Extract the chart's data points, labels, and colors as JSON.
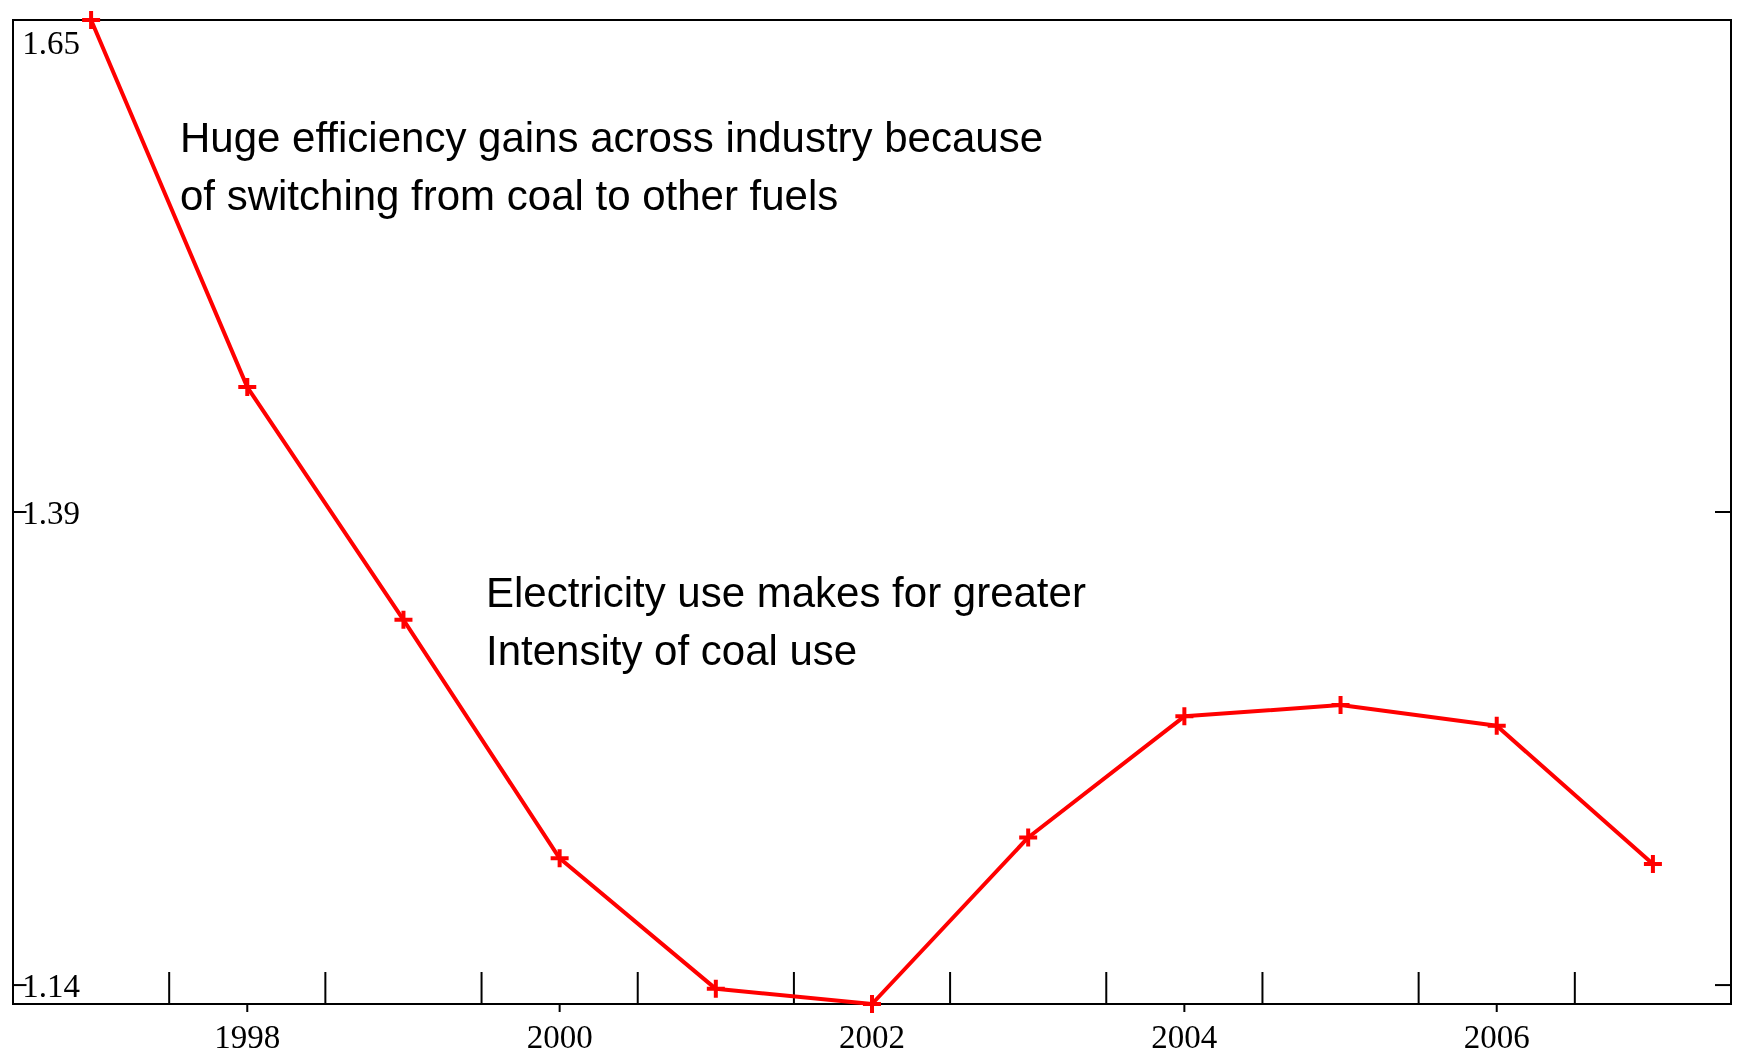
{
  "chart_data": {
    "type": "line",
    "x": [
      1997,
      1998,
      1999,
      2000,
      2001,
      2002,
      2003,
      2004,
      2005,
      2006,
      2007
    ],
    "series": [
      {
        "color": "#ff0000",
        "values": [
          1.65,
          1.456,
          1.333,
          1.207,
          1.138,
          1.13,
          1.218,
          1.282,
          1.288,
          1.277,
          1.204
        ]
      }
    ],
    "xlim": [
      1996.5,
      2007.5
    ],
    "xticks": [
      1998,
      2000,
      2002,
      2004,
      2006
    ],
    "ylim": [
      1.13,
      1.65
    ],
    "yticks": [
      1.14,
      1.39,
      1.65
    ],
    "marker": "cross",
    "grid": false,
    "annotations": [
      "Huge efficiency gains across industry because\nof switching from coal to other fuels",
      "Electricity use makes for greater\nIntensity of coal use"
    ]
  }
}
